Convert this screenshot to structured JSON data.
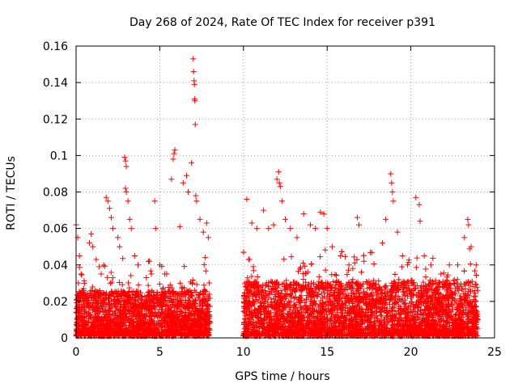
{
  "chart_data": {
    "type": "scatter",
    "title": "Day 268 of 2024, Rate Of TEC Index for receiver p391",
    "xlabel": "GPS time / hours",
    "ylabel": "ROTI / TECUs",
    "xlim": [
      0,
      25
    ],
    "ylim": [
      0,
      0.16
    ],
    "x_ticks": [
      0,
      5,
      10,
      15,
      20,
      25
    ],
    "y_ticks": [
      0,
      0.02,
      0.04,
      0.06,
      0.08,
      0.1,
      0.12,
      0.14,
      0.16
    ],
    "x_tick_labels": [
      "0",
      "5",
      "10",
      "15",
      "20",
      "25"
    ],
    "y_tick_labels": [
      "0",
      "0.02",
      "0.04",
      "0.06",
      "0.08",
      "0.1",
      "0.12",
      "0.14",
      "0.16"
    ],
    "grid": true,
    "marker": "+",
    "color": "#ff0000",
    "data_gap_hours": [
      8.0,
      10.0
    ],
    "series": [
      {
        "name": "ROTI",
        "points": [
          [
            0.0,
            0.062
          ],
          [
            0.1,
            0.055
          ],
          [
            0.2,
            0.045
          ],
          [
            0.3,
            0.035
          ],
          [
            0.5,
            0.03
          ],
          [
            0.8,
            0.052
          ],
          [
            0.9,
            0.057
          ],
          [
            1.0,
            0.05
          ],
          [
            1.2,
            0.043
          ],
          [
            1.5,
            0.035
          ],
          [
            1.8,
            0.077
          ],
          [
            1.9,
            0.075
          ],
          [
            2.0,
            0.071
          ],
          [
            2.1,
            0.066
          ],
          [
            2.2,
            0.06
          ],
          [
            2.5,
            0.055
          ],
          [
            2.6,
            0.05
          ],
          [
            2.9,
            0.099
          ],
          [
            2.95,
            0.097
          ],
          [
            3.0,
            0.094
          ],
          [
            2.95,
            0.082
          ],
          [
            3.0,
            0.08
          ],
          [
            3.1,
            0.075
          ],
          [
            3.2,
            0.065
          ],
          [
            3.3,
            0.06
          ],
          [
            3.5,
            0.045
          ],
          [
            3.7,
            0.04
          ],
          [
            4.2,
            0.033
          ],
          [
            4.5,
            0.035
          ],
          [
            4.7,
            0.075
          ],
          [
            4.75,
            0.06
          ],
          [
            5.0,
            0.04
          ],
          [
            5.3,
            0.035
          ],
          [
            5.7,
            0.087
          ],
          [
            5.8,
            0.098
          ],
          [
            5.85,
            0.101
          ],
          [
            5.9,
            0.103
          ],
          [
            6.2,
            0.061
          ],
          [
            6.4,
            0.085
          ],
          [
            6.6,
            0.089
          ],
          [
            6.7,
            0.08
          ],
          [
            6.9,
            0.096
          ],
          [
            7.0,
            0.153
          ],
          [
            7.02,
            0.146
          ],
          [
            7.05,
            0.141
          ],
          [
            7.07,
            0.139
          ],
          [
            7.08,
            0.131
          ],
          [
            7.1,
            0.13
          ],
          [
            7.12,
            0.117
          ],
          [
            7.15,
            0.078
          ],
          [
            7.2,
            0.075
          ],
          [
            7.4,
            0.065
          ],
          [
            7.6,
            0.058
          ],
          [
            7.8,
            0.063
          ],
          [
            7.9,
            0.055
          ],
          [
            10.2,
            0.076
          ],
          [
            10.5,
            0.063
          ],
          [
            10.8,
            0.06
          ],
          [
            11.2,
            0.07
          ],
          [
            11.5,
            0.06
          ],
          [
            11.8,
            0.062
          ],
          [
            12.0,
            0.087
          ],
          [
            12.1,
            0.091
          ],
          [
            12.15,
            0.085
          ],
          [
            12.2,
            0.083
          ],
          [
            12.3,
            0.075
          ],
          [
            12.5,
            0.065
          ],
          [
            12.8,
            0.06
          ],
          [
            13.2,
            0.055
          ],
          [
            13.6,
            0.068
          ],
          [
            14.0,
            0.062
          ],
          [
            14.3,
            0.06
          ],
          [
            14.6,
            0.069
          ],
          [
            14.8,
            0.068
          ],
          [
            15.0,
            0.06
          ],
          [
            15.3,
            0.05
          ],
          [
            15.8,
            0.045
          ],
          [
            16.3,
            0.04
          ],
          [
            16.8,
            0.066
          ],
          [
            16.9,
            0.062
          ],
          [
            17.2,
            0.042
          ],
          [
            17.8,
            0.03
          ],
          [
            18.3,
            0.052
          ],
          [
            18.5,
            0.065
          ],
          [
            18.8,
            0.09
          ],
          [
            18.85,
            0.085
          ],
          [
            18.9,
            0.08
          ],
          [
            18.95,
            0.075
          ],
          [
            19.2,
            0.058
          ],
          [
            19.5,
            0.045
          ],
          [
            19.8,
            0.04
          ],
          [
            20.3,
            0.077
          ],
          [
            20.5,
            0.073
          ],
          [
            20.55,
            0.064
          ],
          [
            20.8,
            0.045
          ],
          [
            21.2,
            0.04
          ],
          [
            21.8,
            0.035
          ],
          [
            22.3,
            0.04
          ],
          [
            22.8,
            0.04
          ],
          [
            23.2,
            0.055
          ],
          [
            23.4,
            0.065
          ],
          [
            23.45,
            0.062
          ],
          [
            23.6,
            0.05
          ],
          [
            23.9,
            0.04
          ]
        ],
        "dense_band_segments": [
          {
            "x_range": [
              0.0,
              8.0
            ],
            "typical_max": 0.025
          },
          {
            "x_range": [
              10.0,
              24.0
            ],
            "typical_max": 0.03
          }
        ]
      }
    ]
  }
}
